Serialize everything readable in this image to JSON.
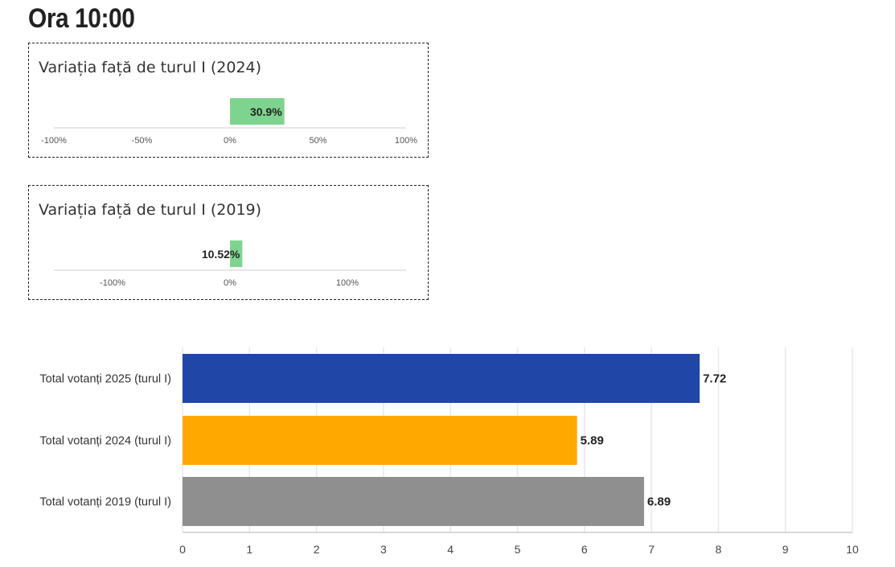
{
  "page_title": "Ora 10:00",
  "colors": {
    "positive_bar": "#7ed48f",
    "axis_line": "#e6e6e6",
    "card_border": "#222222"
  },
  "chart_data": [
    {
      "type": "bar",
      "orientation": "horizontal",
      "title": "Variația față de turul I (2024)",
      "categories": [
        ""
      ],
      "values": [
        30.9
      ],
      "data_labels": [
        "30.9%"
      ],
      "xlim": [
        -100,
        100
      ],
      "tick_values": [
        -100,
        -50,
        0,
        50,
        100
      ],
      "tick_labels": [
        "-100%",
        "-50%",
        "0%",
        "50%",
        "100%"
      ],
      "bar_color": "#7ed48f",
      "grid": false
    },
    {
      "type": "bar",
      "orientation": "horizontal",
      "title": "Variația față de turul I (2019)",
      "categories": [
        ""
      ],
      "values": [
        10.52
      ],
      "data_labels": [
        "10.52%"
      ],
      "xlim": [
        -150,
        150
      ],
      "tick_values": [
        -100,
        0,
        100
      ],
      "tick_labels": [
        "-100%",
        "0%",
        "100%"
      ],
      "bar_color": "#7ed48f",
      "grid": false
    },
    {
      "type": "bar",
      "orientation": "horizontal",
      "title": "",
      "categories": [
        "Total votanți 2025 (turul I)",
        "Total votanți 2024 (turul I)",
        "Total votanți 2019 (turul I)"
      ],
      "values": [
        7.72,
        5.89,
        6.89
      ],
      "data_labels": [
        "7.72",
        "5.89",
        "6.89"
      ],
      "colors": [
        "#2046a8",
        "#ffa800",
        "#8f8f8f"
      ],
      "xlim": [
        0,
        10
      ],
      "tick_values": [
        0,
        1,
        2,
        3,
        4,
        5,
        6,
        7,
        8,
        9,
        10
      ],
      "tick_labels": [
        "0",
        "1",
        "2",
        "3",
        "4",
        "5",
        "6",
        "7",
        "8",
        "9",
        "10"
      ],
      "grid": true
    }
  ]
}
